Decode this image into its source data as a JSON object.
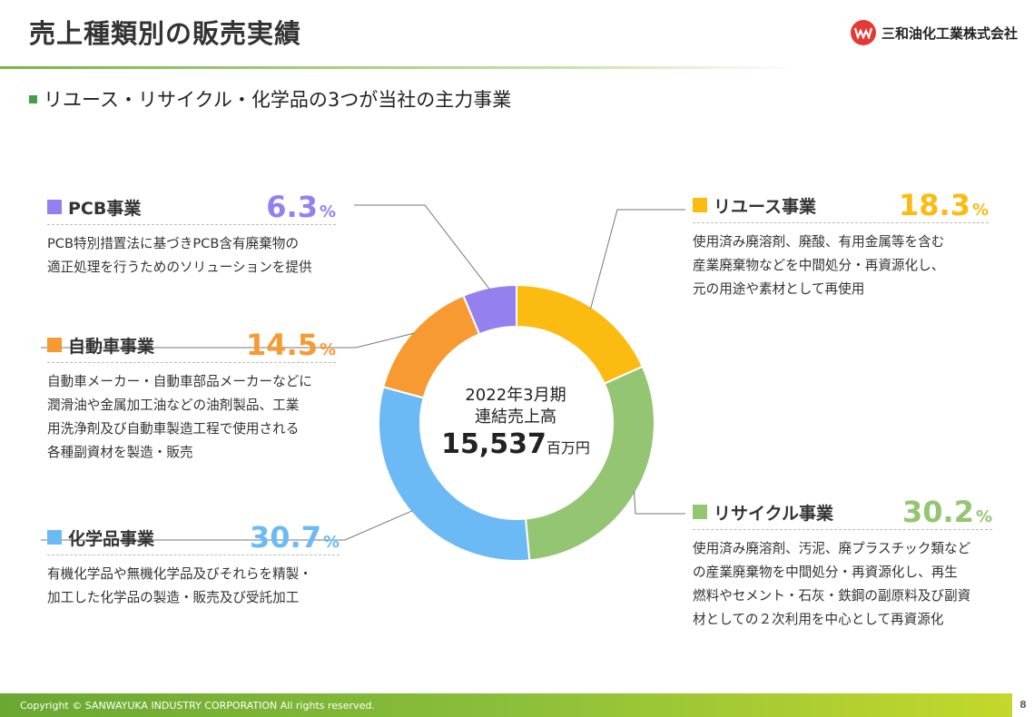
{
  "header": {
    "title": "売上種類別の販売実績",
    "company": "三和油化工業株式会社",
    "subtitle": "リユース・リサイクル・化学品の3つが当社の主力事業"
  },
  "center": {
    "line1": "2022年3月期",
    "line2": "連結売上高",
    "amount": "15,537",
    "unit": "百万円"
  },
  "segments": {
    "pcb": {
      "name": "PCB事業",
      "pct": "6.3",
      "unit": "%",
      "color": "#9680f0",
      "desc": [
        "PCB特別措置法に基づきPCB含有廃棄物の",
        "適正処理を行うためのソリューションを提供"
      ]
    },
    "jidousha": {
      "name": "自動車事業",
      "pct": "14.5",
      "unit": "%",
      "color": "#f79a32",
      "desc": [
        "自動車メーカー・自動車部品メーカーなどに",
        "潤滑油や金属加工油などの油剤製品、工業",
        "用洗浄剤及び自動車製造工程で使用される",
        "各種副資材を製造・販売"
      ]
    },
    "kagaku": {
      "name": "化学品事業",
      "pct": "30.7",
      "unit": "%",
      "color": "#6cbaf5",
      "desc": [
        "有機化学品や無機化学品及びそれらを精製・",
        "加工した化学品の製造・販売及び受託加工"
      ]
    },
    "reuse": {
      "name": "リユース事業",
      "pct": "18.3",
      "unit": "%",
      "color": "#fcbb10",
      "desc": [
        "使用済み廃溶剤、廃酸、有用金属等を含む",
        "産業廃棄物などを中間処分・再資源化し、",
        "元の用途や素材として再使用"
      ]
    },
    "recycle": {
      "name": "リサイクル事業",
      "pct": "30.2",
      "unit": "%",
      "color": "#94c572",
      "desc": [
        "使用済み廃溶剤、汚泥、廃プラスチック類など",
        "の産業廃棄物を中間処分・再資源化し、再生",
        "燃料やセメント・石灰・鉄鋼の副原料及び副資",
        "材としての２次利用を中心として再資源化"
      ]
    }
  },
  "chart_data": {
    "type": "pie",
    "categories": [
      "リユース事業",
      "リサイクル事業",
      "化学品事業",
      "自動車事業",
      "PCB事業"
    ],
    "values": [
      18.3,
      30.2,
      30.7,
      14.5,
      6.3
    ],
    "colors": [
      "#fcbb10",
      "#94c572",
      "#6cbaf5",
      "#f79a32",
      "#9680f0"
    ],
    "donut": true,
    "start": "top",
    "direction": "clockwise"
  },
  "footer": {
    "copyright": "Copyright © SANWAYUKA INDUSTRY CORPORATION All rights reserved.",
    "page": "8"
  }
}
